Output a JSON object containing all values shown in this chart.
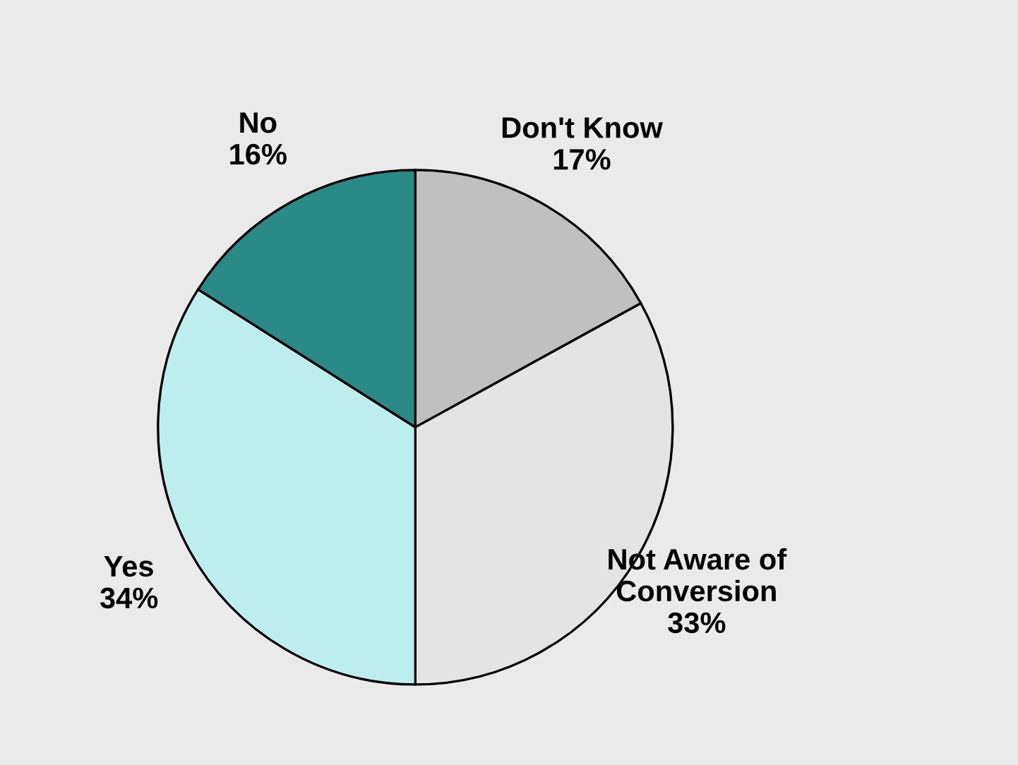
{
  "chart_data": {
    "type": "pie",
    "categories": [
      "Don't Know",
      "Not Aware of\nConversion",
      "Yes",
      "No"
    ],
    "values": [
      17,
      33,
      34,
      16
    ],
    "value_labels": [
      "17%",
      "33%",
      "34%",
      "16%"
    ],
    "colors": [
      "#c0c0c0",
      "#e4e4e4",
      "#bdeeee",
      "#2a8a85"
    ],
    "legend": false
  }
}
